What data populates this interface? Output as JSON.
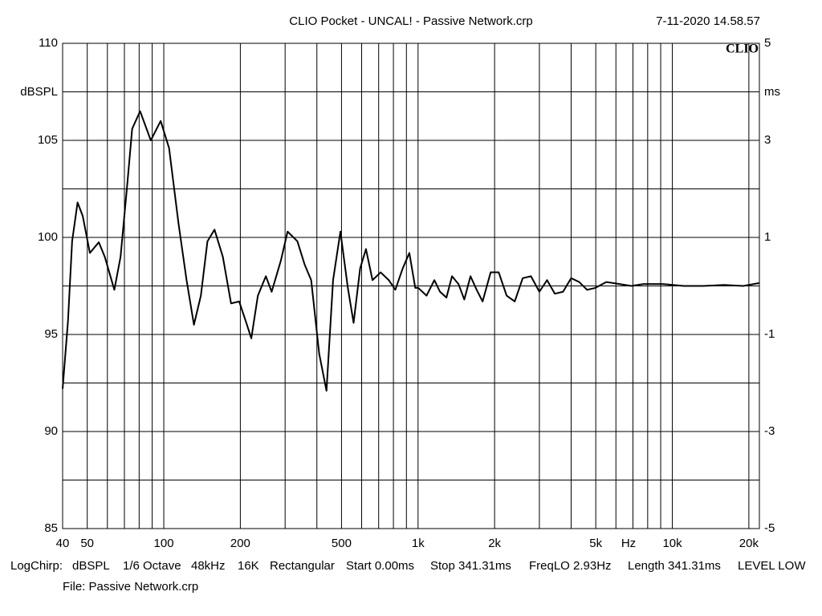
{
  "chart_data": {
    "type": "line",
    "title": "CLIO Pocket - UNCAL! - Passive Network.crp",
    "date": "7-11-2020 14.58.57",
    "logo": "CLIO",
    "y_label": "dBSPL",
    "y2_label": "ms",
    "x_label": "Hz",
    "log_x": true,
    "grid": true,
    "xlim": [
      40,
      22000
    ],
    "ylim": [
      85,
      110
    ],
    "y2lim": [
      -5,
      5
    ],
    "xticks": [
      40,
      50,
      100,
      200,
      500,
      {
        "value": 1000,
        "label": "1k"
      },
      {
        "value": 2000,
        "label": "2k"
      },
      {
        "value": 5000,
        "label": "5k"
      },
      {
        "value": 10000,
        "label": "10k"
      },
      {
        "value": 20000,
        "label": "20k"
      }
    ],
    "xminor": [
      60,
      70,
      80,
      90,
      300,
      400,
      600,
      700,
      800,
      900,
      3000,
      4000,
      6000,
      7000,
      8000,
      9000
    ],
    "yticks": [
      110,
      105,
      100,
      95,
      90,
      85
    ],
    "yminor": [
      107.5,
      102.5,
      97.5,
      92.5,
      87.5
    ],
    "y2ticks": [
      5,
      3,
      1,
      -1,
      -3,
      -5
    ],
    "x": [
      40,
      42,
      43.6,
      45.8,
      48,
      51.2,
      55.5,
      58.6,
      63.9,
      67.6,
      71.8,
      75.1,
      80.7,
      88.9,
      97.2,
      104.9,
      114.3,
      122.9,
      131.4,
      139.9,
      148.5,
      158.3,
      170.7,
      183.9,
      197.9,
      209.9,
      220.9,
      234.4,
      252,
      265.6,
      288.6,
      306.8,
      335.3,
      358.1,
      379.9,
      408.6,
      436.4,
      463.2,
      495,
      529.5,
      557.8,
      591.8,
      623.9,
      662,
      712.6,
      767.1,
      814,
      870,
      924.2,
      975,
      1002,
      1080,
      1159,
      1220,
      1293,
      1360,
      1442,
      1520,
      1608,
      1700,
      1794,
      1930,
      2076,
      2230,
      2400,
      2580,
      2780,
      3000,
      3216,
      3450,
      3717,
      4000,
      4305,
      4620,
      4980,
      5500,
      6196,
      6900,
      7708,
      9200,
      11092,
      13200,
      15961,
      19000,
      22000
    ],
    "series": [
      {
        "color": "#000000",
        "values": [
          92.2,
          95.7,
          99.8,
          101.8,
          101.1,
          99.2,
          99.75,
          99.0,
          97.3,
          99.0,
          102.7,
          105.6,
          106.5,
          105.0,
          106.0,
          104.6,
          100.7,
          97.8,
          95.5,
          97.0,
          99.8,
          100.4,
          99.0,
          96.6,
          96.7,
          95.7,
          94.8,
          97.0,
          98.0,
          97.2,
          98.8,
          100.3,
          99.8,
          98.6,
          97.8,
          94.0,
          92.1,
          97.8,
          100.3,
          97.4,
          95.6,
          98.4,
          99.4,
          97.8,
          98.2,
          97.8,
          97.3,
          98.4,
          99.2,
          97.4,
          97.4,
          97.0,
          97.8,
          97.2,
          96.9,
          98.0,
          97.6,
          96.8,
          98.0,
          97.3,
          96.7,
          98.2,
          98.2,
          97.0,
          96.7,
          97.9,
          98.0,
          97.2,
          97.8,
          97.1,
          97.2,
          97.9,
          97.7,
          97.3,
          97.4,
          97.7,
          97.6,
          97.5,
          97.6,
          97.6,
          97.5,
          97.5,
          97.55,
          97.5,
          97.65
        ]
      }
    ],
    "footer": [
      "LogChirp:",
      "dBSPL",
      "1/6 Octave",
      "48kHz",
      "16K",
      "Rectangular",
      "Start 0.00ms",
      "Stop 341.31ms",
      "FreqLO 2.93Hz",
      "Length 341.31ms",
      "LEVEL LOW"
    ],
    "file": "File: Passive Network.crp"
  }
}
